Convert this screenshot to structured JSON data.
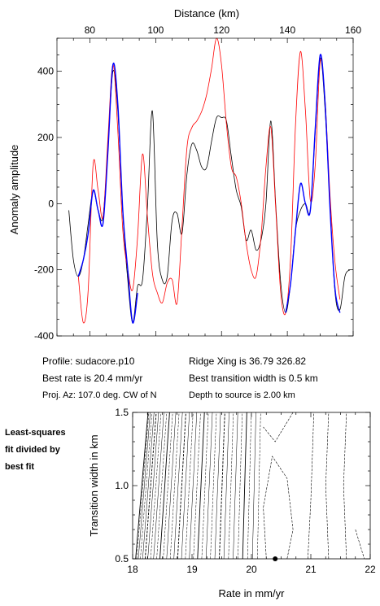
{
  "chart_data": [
    {
      "type": "line",
      "title": "",
      "xlabel": "Distance (km)",
      "ylabel": "Anomaly amplitude",
      "xlim": [
        70,
        160
      ],
      "ylim": [
        -400,
        500
      ],
      "x_ticks": [
        80,
        100,
        120,
        140,
        160
      ],
      "y_ticks": [
        -400,
        -200,
        0,
        200,
        400
      ],
      "x_tick_labels": [
        "80",
        "100",
        "120",
        "140",
        "160"
      ],
      "y_tick_labels": [
        "-400",
        "-200",
        "0",
        "200",
        "400"
      ],
      "x_axis_position": "top",
      "grid": false,
      "series": [
        {
          "color": "#000000",
          "x": [
            73.6,
            75,
            76.5,
            78,
            79.5,
            81,
            82.5,
            84,
            85.5,
            87,
            88.5,
            90,
            91.5,
            93,
            94.5,
            96,
            97.5,
            99,
            100.5,
            102,
            103.5,
            105,
            106.5,
            108,
            109.5,
            111,
            112.5,
            114,
            115.5,
            117,
            118.5,
            120,
            121.5,
            123,
            124.5,
            126,
            127.5,
            129,
            130.5,
            132,
            133.5,
            135,
            136.5,
            138,
            139.5,
            141,
            142.5,
            144,
            145.5,
            147,
            148.5,
            150,
            151.5,
            153,
            154.5,
            156,
            157.5,
            159
          ],
          "y": [
            -20,
            -170,
            -220,
            -170,
            -60,
            40,
            -20,
            -40,
            170,
            400,
            280,
            -30,
            -230,
            -360,
            -250,
            -230,
            -10,
            280,
            -120,
            -230,
            -220,
            -50,
            -30,
            -90,
            90,
            180,
            160,
            110,
            110,
            190,
            260,
            260,
            250,
            140,
            40,
            -10,
            -110,
            -80,
            -140,
            -110,
            0,
            250,
            -10,
            -240,
            -330,
            -240,
            -80,
            -20,
            0,
            -20,
            220,
            440,
            280,
            -10,
            -270,
            -320,
            -220,
            -200
          ]
        },
        {
          "color": "#ff0000",
          "x": [
            76.5,
            78,
            79.5,
            81,
            82.5,
            84,
            85.5,
            87,
            88.5,
            90,
            91.5,
            93,
            94.5,
            96,
            97.5,
            99,
            100.5,
            102,
            103.5,
            105,
            106.5,
            108,
            109.5,
            111,
            112.5,
            114,
            115.5,
            117,
            118.5,
            120,
            121.5,
            123,
            124.5,
            126,
            127.5,
            129,
            130.5,
            132,
            133.5,
            135,
            136.5,
            138,
            139.5,
            141,
            142.5,
            144,
            145.5,
            147,
            148.5,
            150,
            151.5,
            153,
            154.5,
            156
          ],
          "y": [
            -220,
            -360,
            -260,
            120,
            40,
            -40,
            200,
            420,
            220,
            -80,
            -200,
            -260,
            -100,
            150,
            -40,
            -210,
            -270,
            -300,
            -240,
            -230,
            -300,
            -70,
            170,
            230,
            250,
            280,
            330,
            410,
            500,
            420,
            240,
            110,
            80,
            0,
            -120,
            -200,
            -220,
            -100,
            110,
            230,
            -20,
            -270,
            -330,
            -160,
            240,
            460,
            280,
            10,
            120,
            430,
            310,
            20,
            -180,
            -290
          ]
        },
        {
          "color": "#0000ff",
          "x": [
            76.5,
            78,
            79.5,
            81,
            82.5,
            84,
            85.5,
            87,
            88.5,
            90,
            91.5,
            93,
            94.5
          ],
          "y": [
            -220,
            -170,
            -90,
            40,
            -20,
            -60,
            160,
            420,
            300,
            -20,
            -200,
            -360,
            -270
          ]
        },
        {
          "color": "#0000ff",
          "x": [
            139.5,
            141,
            142.5,
            144,
            145.5,
            147,
            148.5,
            150,
            151.5,
            153,
            154.5,
            156
          ],
          "y": [
            -330,
            -240,
            -80,
            60,
            0,
            -20,
            230,
            450,
            300,
            -20,
            -260,
            -330
          ]
        }
      ]
    },
    {
      "type": "contour",
      "xlabel": "Rate in mm/yr",
      "ylabel": "Transition width in km",
      "xlim": [
        18,
        22
      ],
      "ylim": [
        0.5,
        1.5
      ],
      "x_ticks": [
        18,
        19,
        20,
        21,
        22
      ],
      "y_ticks": [
        0.5,
        1.0,
        1.5
      ],
      "x_tick_labels": [
        "18",
        "19",
        "20",
        "21",
        "22"
      ],
      "y_tick_labels": [
        "0.5",
        "1.0",
        "1.5"
      ],
      "best_fit_point": {
        "x": 20.4,
        "y": 0.5
      },
      "grid": false
    }
  ],
  "info": {
    "profile": "Profile: sudacore.p10",
    "ridge": "Ridge Xing is 36.79 326.82",
    "rate": "Best rate is 20.4 mm/yr",
    "transition": "Best transition width is 0.5 km",
    "azimuth": "Proj. Az: 107.0 deg. CW of N",
    "depth": "Depth to source is   2.00 km"
  },
  "side_label": [
    "Least-squares",
    "fit divided by",
    "best fit"
  ]
}
